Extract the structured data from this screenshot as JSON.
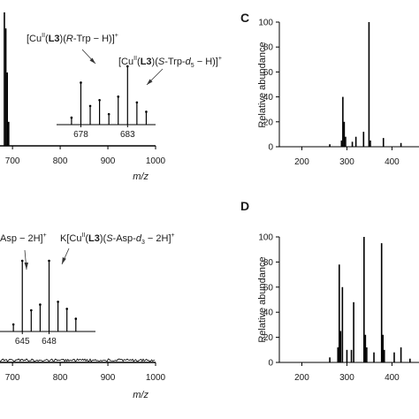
{
  "panel_labels": {
    "c": "C",
    "d": "D"
  },
  "ylabel": "Relative abundance",
  "xlabel": "m/z",
  "annotations": {
    "top_left": [
      "[Cu",
      "II",
      "(",
      "L3",
      ")(",
      "R",
      "-Trp − H)]",
      "+"
    ],
    "top_right": [
      "[Cu",
      "II",
      "(",
      "L3",
      ")(",
      "S",
      "-Trp-",
      "d",
      "5",
      " − H)]",
      "+"
    ],
    "bottom_left": [
      "Asp − 2H]",
      "+"
    ],
    "bottom_right": [
      "K[Cu",
      "II",
      "(",
      "L3",
      ")(",
      "S",
      "-Asp-",
      "d",
      "3",
      " − 2H]",
      "+"
    ]
  },
  "chart_data": [
    {
      "id": "top-left-spectrum",
      "type": "bar",
      "xlabel": "m/z",
      "xlim": [
        560,
        1000
      ],
      "xticks": [
        700,
        800,
        900,
        1000
      ],
      "xtick_labels": [
        "700",
        "800",
        "900",
        "1000"
      ],
      "x": [
        683,
        686,
        689,
        692
      ],
      "values": [
        100,
        88,
        55,
        18
      ],
      "inset": {
        "type": "bar",
        "xlim": [
          675.4,
          686.0
        ],
        "xticks": [
          678,
          683
        ],
        "xtick_labels": [
          "678",
          "683"
        ],
        "x": [
          677,
          678,
          679,
          680,
          681,
          682,
          683,
          684,
          685
        ],
        "values": [
          12,
          72,
          32,
          42,
          18,
          48,
          100,
          38,
          22
        ]
      }
    },
    {
      "id": "bottom-left-spectrum",
      "type": "bar",
      "xlabel": "m/z",
      "xlim": [
        560,
        1000
      ],
      "xticks": [
        700,
        800,
        900,
        1000
      ],
      "xtick_labels": [
        "700",
        "800",
        "900",
        "1000"
      ],
      "x": [
        645,
        648
      ],
      "values": [
        14,
        16
      ],
      "inset": {
        "type": "bar",
        "xlim": [
          642.5,
          653.2
        ],
        "xticks": [
          645,
          648
        ],
        "xtick_labels": [
          "645",
          "648"
        ],
        "x": [
          644,
          645,
          646,
          647,
          648,
          649,
          650,
          651
        ],
        "values": [
          10,
          100,
          30,
          38,
          100,
          42,
          32,
          18
        ]
      }
    },
    {
      "id": "panel-c",
      "type": "bar",
      "ylabel": "Relative abundance",
      "xlim": [
        150,
        460
      ],
      "ylim": [
        0,
        100
      ],
      "xticks": [
        200,
        300,
        400
      ],
      "xtick_labels": [
        "200",
        "300",
        "400"
      ],
      "yticks": [
        0,
        20,
        40,
        60,
        80,
        100
      ],
      "ytick_labels": [
        "0",
        "20",
        "40",
        "60",
        "80",
        "100"
      ],
      "x": [
        262,
        288,
        291,
        294,
        297,
        312,
        320,
        337,
        349,
        352,
        381,
        420
      ],
      "values": [
        2,
        5,
        40,
        20,
        8,
        4,
        8,
        12,
        100,
        5,
        7,
        3
      ]
    },
    {
      "id": "panel-d",
      "type": "bar",
      "ylabel": "Relative abundance",
      "xlim": [
        150,
        460
      ],
      "ylim": [
        0,
        100
      ],
      "xticks": [
        200,
        300,
        400
      ],
      "xtick_labels": [
        "200",
        "300",
        "400"
      ],
      "yticks": [
        0,
        20,
        40,
        60,
        80,
        100
      ],
      "ytick_labels": [
        "0",
        "20",
        "40",
        "60",
        "80",
        "100"
      ],
      "x": [
        262,
        280,
        283,
        286,
        290,
        300,
        310,
        315,
        338,
        341,
        344,
        360,
        377,
        380,
        383,
        405,
        420,
        440
      ],
      "values": [
        4,
        12,
        78,
        25,
        60,
        10,
        10,
        48,
        100,
        22,
        12,
        8,
        95,
        22,
        10,
        8,
        12,
        3
      ]
    }
  ]
}
